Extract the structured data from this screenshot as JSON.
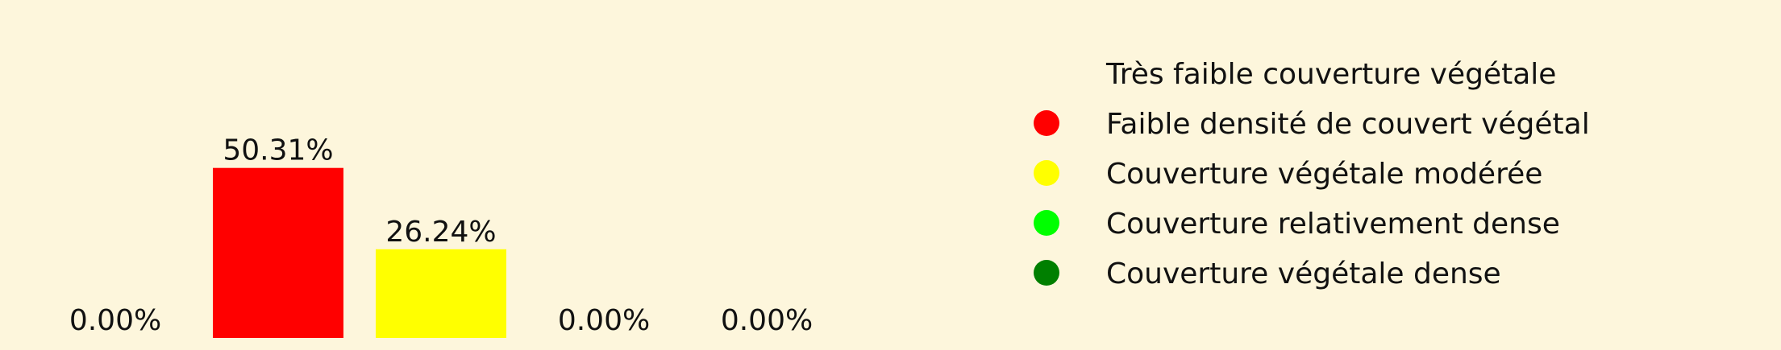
{
  "chart_data": {
    "type": "bar",
    "categories": [
      "Très faible couverture végétale",
      "Faible densité de couvert végétal",
      "Couverture végétale modérée",
      "Couverture relativement dense",
      "Couverture végétale dense"
    ],
    "values": [
      0.0,
      50.31,
      26.24,
      0.0,
      0.0
    ],
    "value_labels": [
      "0.00%",
      "50.31%",
      "26.24%",
      "0.00%",
      "0.00%"
    ],
    "colors": [
      "#fdf6dc",
      "#ff0000",
      "#ffff00",
      "#00ff00",
      "#007f00"
    ],
    "ylim": [
      0,
      100
    ],
    "legend": "right",
    "grid": false,
    "title": "",
    "xlabel": "",
    "ylabel": ""
  }
}
